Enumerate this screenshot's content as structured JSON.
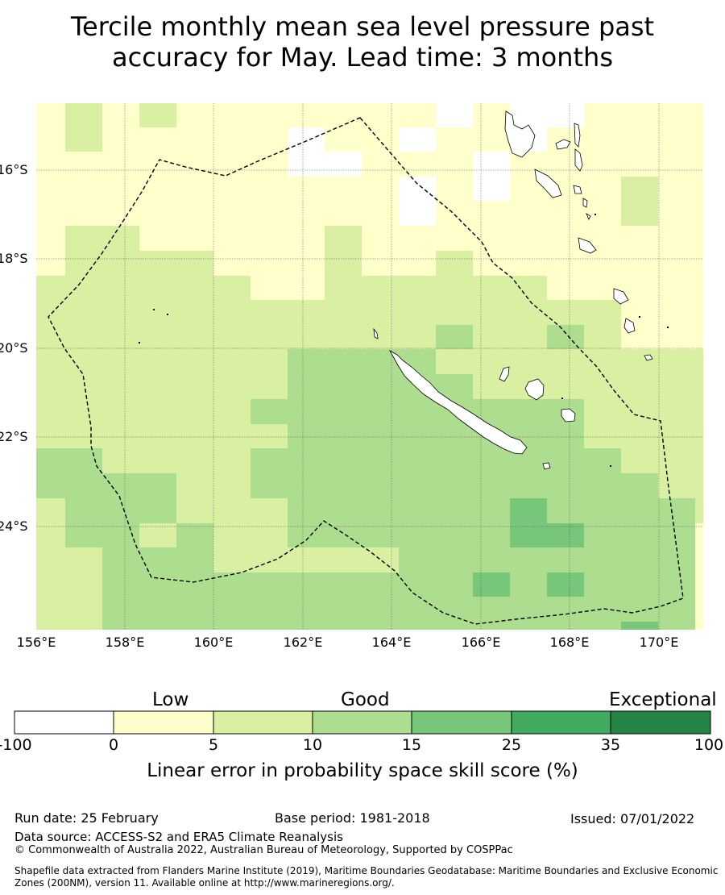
{
  "title": {
    "line1": "Tercile monthly mean sea level pressure past",
    "line2": "accuracy for May. Lead time: 3 months"
  },
  "map": {
    "lat_labels": [
      "16°S",
      "18°S",
      "20°S",
      "22°S",
      "24°S"
    ],
    "lon_labels": [
      "156°E",
      "158°E",
      "160°E",
      "162°E",
      "164°E",
      "166°E",
      "168°E",
      "170°E"
    ],
    "extent": {
      "lon_min": 156,
      "lon_max": 171,
      "lat_min": -26.5,
      "lat_max": -14.5
    }
  },
  "colorbar": {
    "categories": [
      "Low",
      "Good",
      "Exceptional"
    ],
    "ticks": [
      "-100",
      "0",
      "5",
      "10",
      "15",
      "25",
      "35",
      "100"
    ],
    "colors": [
      "#ffffff",
      "#ffffcc",
      "#d9f0a3",
      "#addd8e",
      "#78c679",
      "#41ab5d",
      "#238443"
    ],
    "label": "Linear error in probability space skill score (%)"
  },
  "footer": {
    "run_date": "Run date: 25 February",
    "base_period": "Base period: 1981-2018",
    "issued": "Issued: 07/01/2022",
    "data_source": "Data source: ACCESS-S2 and ERA5 Climate Reanalysis",
    "copyright": "© Commonwealth of Australia 2022, Australian Bureau of Meteorology, Supported by COSPPac",
    "shapefile": "Shapefile data extracted from Flanders Marine Institute (2019), Maritime Boundaries Geodatabase: Maritime Boundaries and Exclusive Economic Zones (200NM), version 11. Available online at http://www.marineregions.org/."
  }
}
